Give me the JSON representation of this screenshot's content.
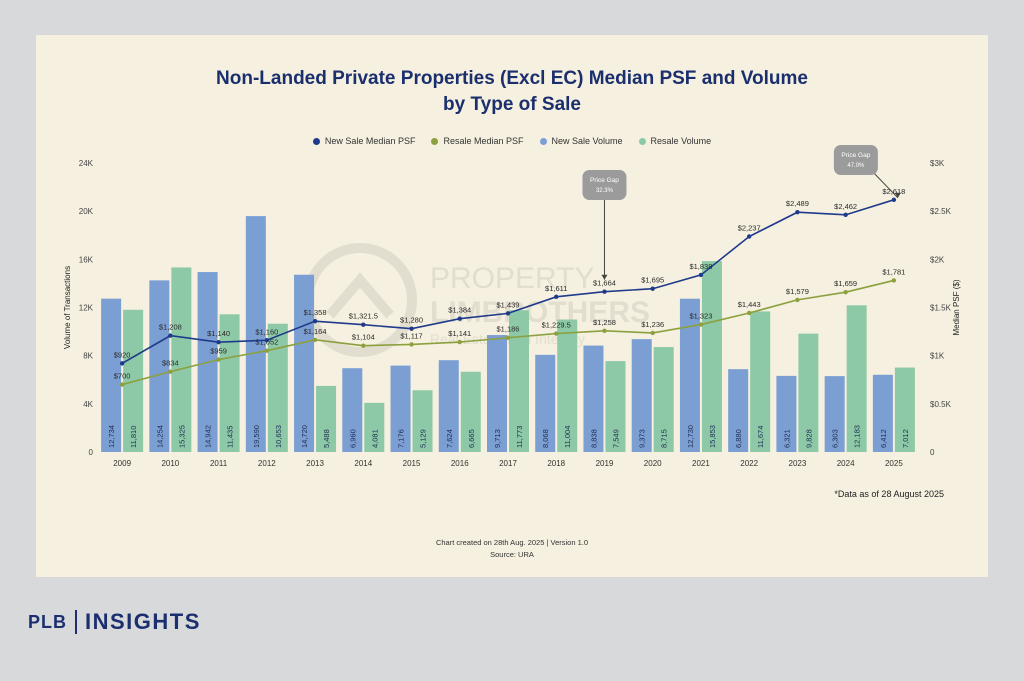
{
  "header": {
    "title_line1": "Non-Landed Private Properties (Excl EC) Median PSF and Volume",
    "title_line2": "by Type of Sale"
  },
  "legend": {
    "new_psf": "New Sale Median PSF",
    "resale_psf": "Resale Median PSF",
    "new_vol": "New Sale Volume",
    "resale_vol": "Resale Volume"
  },
  "colors": {
    "new_psf": "#1f3a8a",
    "resale_psf": "#8ca03e",
    "new_vol": "#7b9fd2",
    "resale_vol": "#8dc9a6",
    "callout": "#9b9b9b"
  },
  "note": "*Data as of 28 August 2025",
  "footer": {
    "line1": "Chart created on 28th Aug. 2025 | Version 1.0",
    "line2": "Source: URA"
  },
  "brand": {
    "left": "PLB",
    "right": "INSIGHTS"
  },
  "watermark": {
    "line1": "PROPERTY",
    "line2": "LIMBROTHERS",
    "line3": "Real Estate with Integrity"
  },
  "chart_data": {
    "type": "bar",
    "title": "Non-Landed Private Properties (Excl EC) Median PSF and Volume by Type of Sale",
    "xlabel": "",
    "ylabel": "Volume of Transactions",
    "y2label": "Median PSF ($)",
    "ylim": [
      0,
      24000
    ],
    "y2lim": [
      0,
      3000
    ],
    "y_ticks": [
      0,
      4000,
      8000,
      12000,
      16000,
      20000,
      24000
    ],
    "y_tick_labels": [
      "0",
      "4K",
      "8K",
      "12K",
      "16K",
      "20K",
      "24K"
    ],
    "y2_ticks": [
      0,
      500,
      1000,
      1500,
      2000,
      2500,
      3000
    ],
    "y2_tick_labels": [
      "0",
      "$0.5K",
      "$1K",
      "$1.5K",
      "$2K",
      "$2.5K",
      "$3K"
    ],
    "categories": [
      "2009",
      "2010",
      "2011",
      "2012",
      "2013",
      "2014",
      "2015",
      "2016",
      "2017",
      "2018",
      "2019",
      "2020",
      "2021",
      "2022",
      "2023",
      "2024",
      "2025"
    ],
    "series": [
      {
        "name": "New Sale Volume",
        "kind": "bar",
        "values": [
          12734,
          14254,
          14942,
          19590,
          14720,
          6960,
          7176,
          7624,
          9713,
          8068,
          8838,
          9373,
          12730,
          6880,
          6321,
          6303,
          6412
        ],
        "labels": [
          "12,734",
          "14,254",
          "14,942",
          "19,590",
          "14,720",
          "6,960",
          "7,176",
          "7,624",
          "9,713",
          "8,068",
          "8,838",
          "9,373",
          "12,730",
          "6,880",
          "6,321",
          "6,303",
          "6,412"
        ]
      },
      {
        "name": "Resale Volume",
        "kind": "bar",
        "values": [
          11810,
          15325,
          11435,
          10653,
          5488,
          4081,
          5129,
          6665,
          11773,
          11004,
          7549,
          8715,
          15853,
          11674,
          9828,
          12183,
          7012
        ],
        "labels": [
          "11,810",
          "15,325",
          "11,435",
          "10,653",
          "5,488",
          "4,081",
          "5,129",
          "6,665",
          "11,773",
          "11,004",
          "7,549",
          "8,715",
          "15,853",
          "11,674",
          "9,828",
          "12,183",
          "7,012"
        ]
      },
      {
        "name": "New Sale Median PSF",
        "kind": "line",
        "axis": "right",
        "values": [
          920,
          1208,
          1140,
          1160,
          1358,
          1321.5,
          1280,
          1384,
          1439,
          1611,
          1664,
          1695,
          1838,
          2237,
          2489,
          2462,
          2618
        ],
        "labels": [
          "$920",
          "$1,208",
          "$1,140",
          "$1,160",
          "$1,358",
          "$1,321.5",
          "$1,280",
          "$1,384",
          "$1,439",
          "$1,611",
          "$1,664",
          "$1,695",
          "$1,838",
          "$2,237",
          "$2,489",
          "$2,462",
          "$2,618"
        ]
      },
      {
        "name": "Resale Median PSF",
        "kind": "line",
        "axis": "right",
        "values": [
          700,
          834,
          959,
          1052,
          1164,
          1104,
          1117,
          1141,
          1186,
          1229.5,
          1258,
          1236,
          1323,
          1443,
          1579,
          1659,
          1781
        ],
        "labels": [
          "$700",
          "$834",
          "$959",
          "$1,052",
          "$1,164",
          "$1,104",
          "$1,117",
          "$1,141",
          "$1,186",
          "$1,229.5",
          "$1,258",
          "$1,236",
          "$1,323",
          "$1,443",
          "$1,579",
          "$1,659",
          "$1,781"
        ]
      }
    ],
    "annotations": [
      {
        "year": "2019",
        "title": "Price Gap",
        "value": "32.3%"
      },
      {
        "year": "2025",
        "title": "Price Gap",
        "value": "47.0%"
      }
    ]
  }
}
